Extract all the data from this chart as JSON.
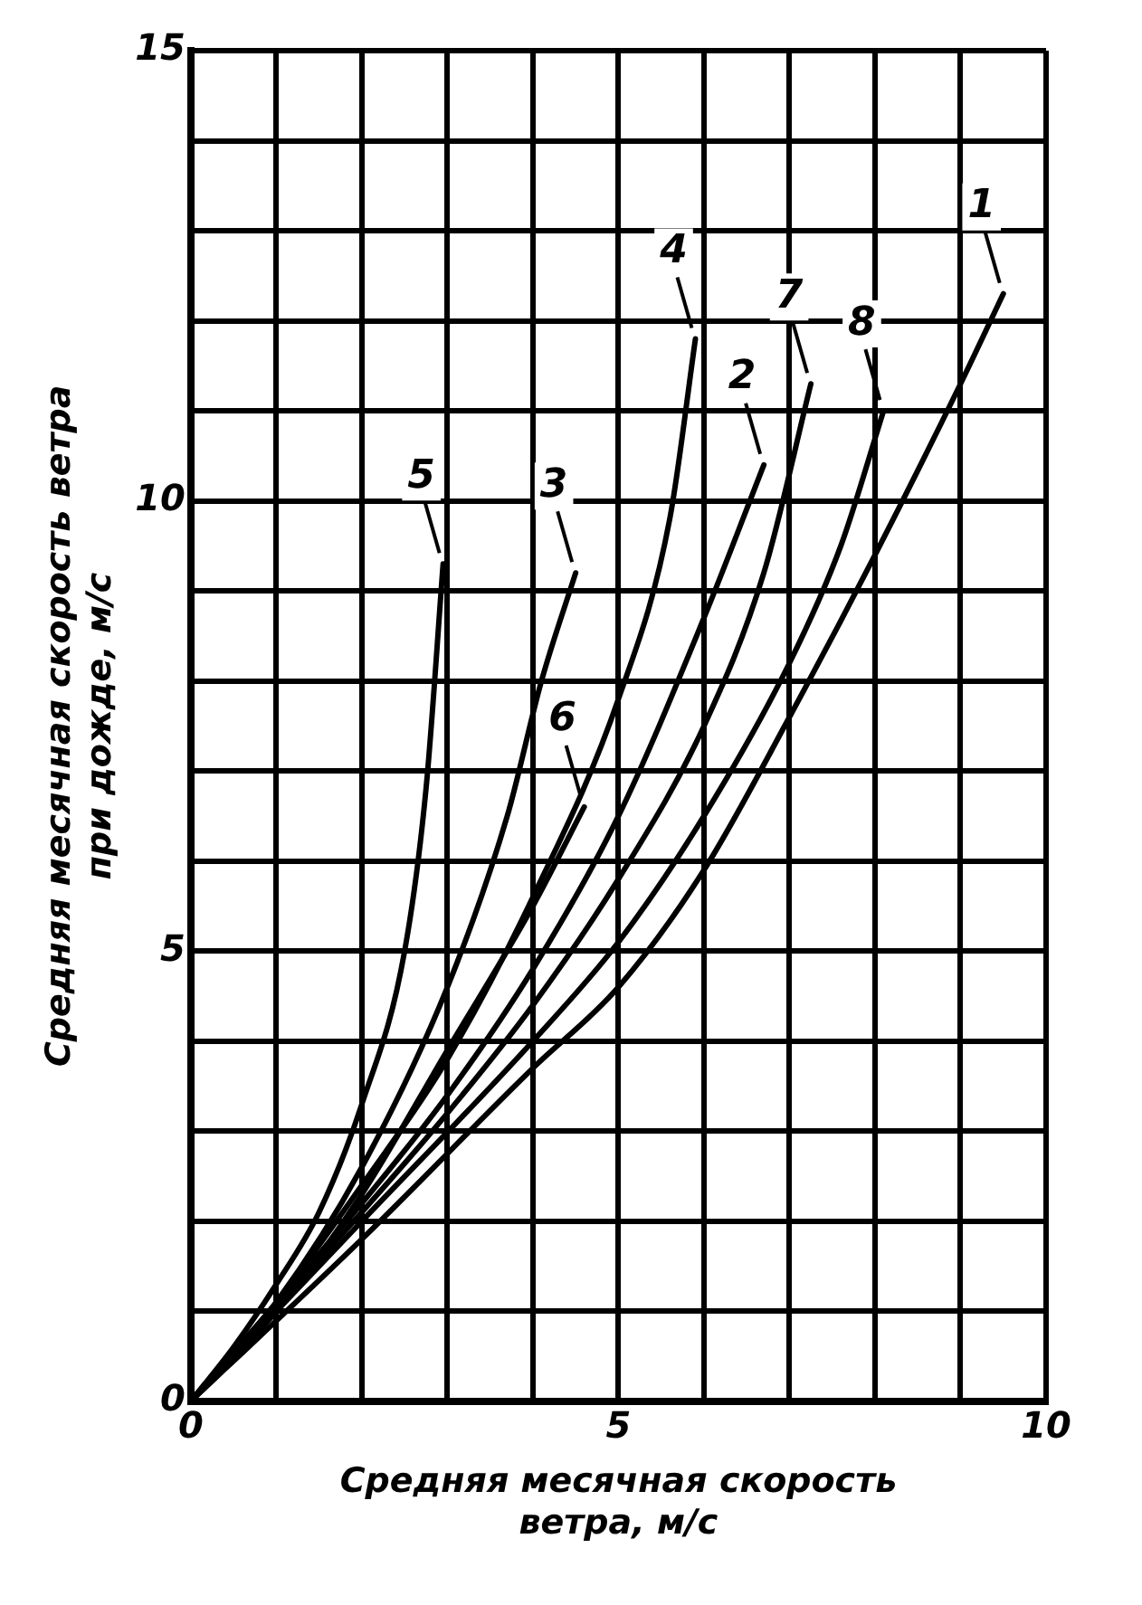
{
  "chart_data": {
    "type": "line",
    "xlabel": "Средняя месячная скорость\nветра, м/с",
    "ylabel": "Средняя месячная скорость ветра\nпри дожде, м/с",
    "xlim": [
      0,
      10
    ],
    "ylim": [
      0,
      15
    ],
    "xticks": [
      0,
      {
        "value": 1,
        "label": null
      },
      {
        "value": 2,
        "label": null
      },
      {
        "value": 3,
        "label": null
      },
      {
        "value": 4,
        "label": null
      },
      5,
      {
        "value": 6,
        "label": null
      },
      {
        "value": 7,
        "label": null
      },
      {
        "value": 8,
        "label": null
      },
      {
        "value": 9,
        "label": null
      },
      10
    ],
    "yticks": [
      0,
      {
        "value": 1,
        "label": null
      },
      {
        "value": 2,
        "label": null
      },
      {
        "value": 3,
        "label": null
      },
      {
        "value": 4,
        "label": null
      },
      5,
      {
        "value": 6,
        "label": null
      },
      {
        "value": 7,
        "label": null
      },
      {
        "value": 8,
        "label": null
      },
      {
        "value": 9,
        "label": null
      },
      10,
      {
        "value": 11,
        "label": null
      },
      {
        "value": 12,
        "label": null
      },
      {
        "value": 13,
        "label": null
      },
      {
        "value": 14,
        "label": null
      },
      15
    ],
    "grid": true,
    "legend": false,
    "marker": "none",
    "line_style": "solid",
    "series": [
      {
        "name": "1",
        "color": "#000000",
        "x": [
          0,
          2,
          4,
          5,
          6,
          7,
          8,
          9,
          9.5
        ],
        "values": [
          0,
          1.8,
          3.7,
          4.6,
          5.9,
          7.6,
          9.4,
          11.3,
          12.3
        ]
      },
      {
        "name": "2",
        "color": "#000000",
        "x": [
          0,
          2,
          3,
          4,
          5,
          6,
          6.7
        ],
        "values": [
          0,
          2.2,
          3.4,
          4.8,
          6.5,
          8.7,
          10.4
        ]
      },
      {
        "name": "3",
        "color": "#000000",
        "x": [
          0,
          1,
          2,
          3,
          3.7,
          4.1,
          4.5
        ],
        "values": [
          0,
          1.1,
          2.6,
          4.6,
          6.5,
          8,
          9.2
        ]
      },
      {
        "name": "4",
        "color": "#000000",
        "x": [
          0,
          1,
          2,
          3,
          4,
          5,
          5.6,
          5.9
        ],
        "values": [
          0,
          1.1,
          2.4,
          3.8,
          5.6,
          7.8,
          9.8,
          11.8
        ]
      },
      {
        "name": "5",
        "color": "#000000",
        "x": [
          0,
          0.5,
          1,
          1.5,
          2,
          2.5,
          2.75,
          2.95
        ],
        "values": [
          0,
          0.6,
          1.3,
          2.1,
          3.3,
          5,
          6.8,
          9.3
        ]
      },
      {
        "name": "6",
        "color": "#000000",
        "x": [
          0,
          1,
          2,
          3,
          4,
          4.6
        ],
        "values": [
          0,
          1,
          2.3,
          3.9,
          5.5,
          6.6
        ]
      },
      {
        "name": "7",
        "color": "#000000",
        "x": [
          0,
          2,
          3,
          4,
          5,
          6,
          6.7,
          7.25
        ],
        "values": [
          0,
          2.1,
          3.2,
          4.4,
          5.8,
          7.5,
          9.2,
          11.3
        ]
      },
      {
        "name": "8",
        "color": "#000000",
        "x": [
          0,
          2,
          4,
          5,
          6,
          7,
          7.6,
          8.1
        ],
        "values": [
          0,
          2,
          4,
          5.1,
          6.5,
          8.2,
          9.5,
          11
        ]
      }
    ]
  }
}
